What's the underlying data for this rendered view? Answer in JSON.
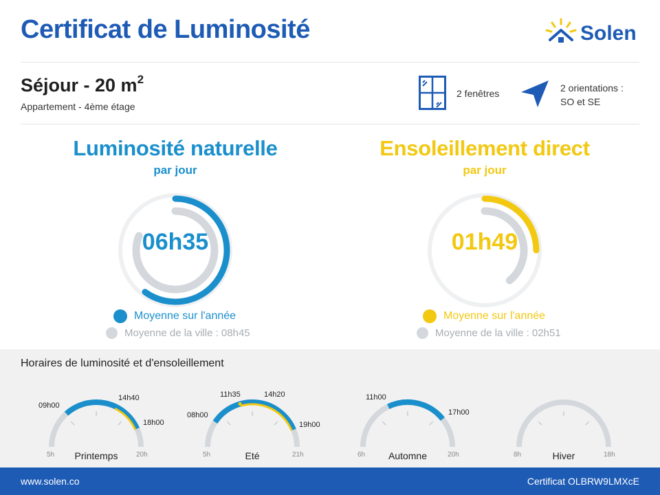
{
  "header": {
    "title": "Certificat de Luminosité",
    "brand": "Solen"
  },
  "room": {
    "name": "Séjour - 20 m",
    "area_sup": "2",
    "subtitle": "Appartement - 4ème étage",
    "windows_label": "2 fenêtres",
    "orientation_line1": "2 orientations :",
    "orientation_line2": "SO et SE"
  },
  "metrics": {
    "natural": {
      "title": "Luminosité naturelle",
      "subtitle": "par jour",
      "value": "06h35",
      "color": "#1a8fcc",
      "city_value": "08h45",
      "legend_primary": "Moyenne sur l'année",
      "legend_city": "Moyenne de la ville : 08h45",
      "fraction_value": 0.6,
      "fraction_city": 0.81
    },
    "sun": {
      "title": "Ensoleillement direct",
      "subtitle": "par jour",
      "value": "01h49",
      "color": "#f2c811",
      "city_value": "02h51",
      "legend_primary": "Moyenne sur l'année",
      "legend_city": "Moyenne de la ville : 02h51",
      "fraction_value": 0.25,
      "fraction_city": 0.39
    }
  },
  "schedule": {
    "title": "Horaires de luminosité et d'ensoleillement",
    "seasons": [
      {
        "name": "Printemps",
        "start": "5h",
        "end": "20h",
        "range": [
          5,
          20
        ],
        "light": [
          9,
          18
        ],
        "sun": [
          14.67,
          18
        ],
        "labels": [
          "09h00",
          "14h40",
          "18h00"
        ]
      },
      {
        "name": "Eté",
        "start": "5h",
        "end": "21h",
        "range": [
          5,
          21
        ],
        "light": [
          8,
          19
        ],
        "sun": [
          11.58,
          19
        ],
        "sun_start_mark": 11.58,
        "labels": [
          "08h00",
          "11h35",
          "14h20",
          "19h00"
        ]
      },
      {
        "name": "Automne",
        "start": "6h",
        "end": "20h",
        "range": [
          6,
          20
        ],
        "light": [
          11,
          17
        ],
        "sun": null,
        "labels": [
          "11h00",
          "17h00"
        ]
      },
      {
        "name": "Hiver",
        "start": "8h",
        "end": "18h",
        "range": [
          8,
          18
        ],
        "light": null,
        "sun": null,
        "labels": []
      }
    ]
  },
  "colors": {
    "brand": "#1e5bb5",
    "light_blue": "#1a8fcc",
    "sun_yellow": "#f2c811",
    "track_grey": "#d4d8dc"
  },
  "footer": {
    "website": "www.solen.co",
    "certificate": "Certificat OLBRW9LMXcE"
  }
}
